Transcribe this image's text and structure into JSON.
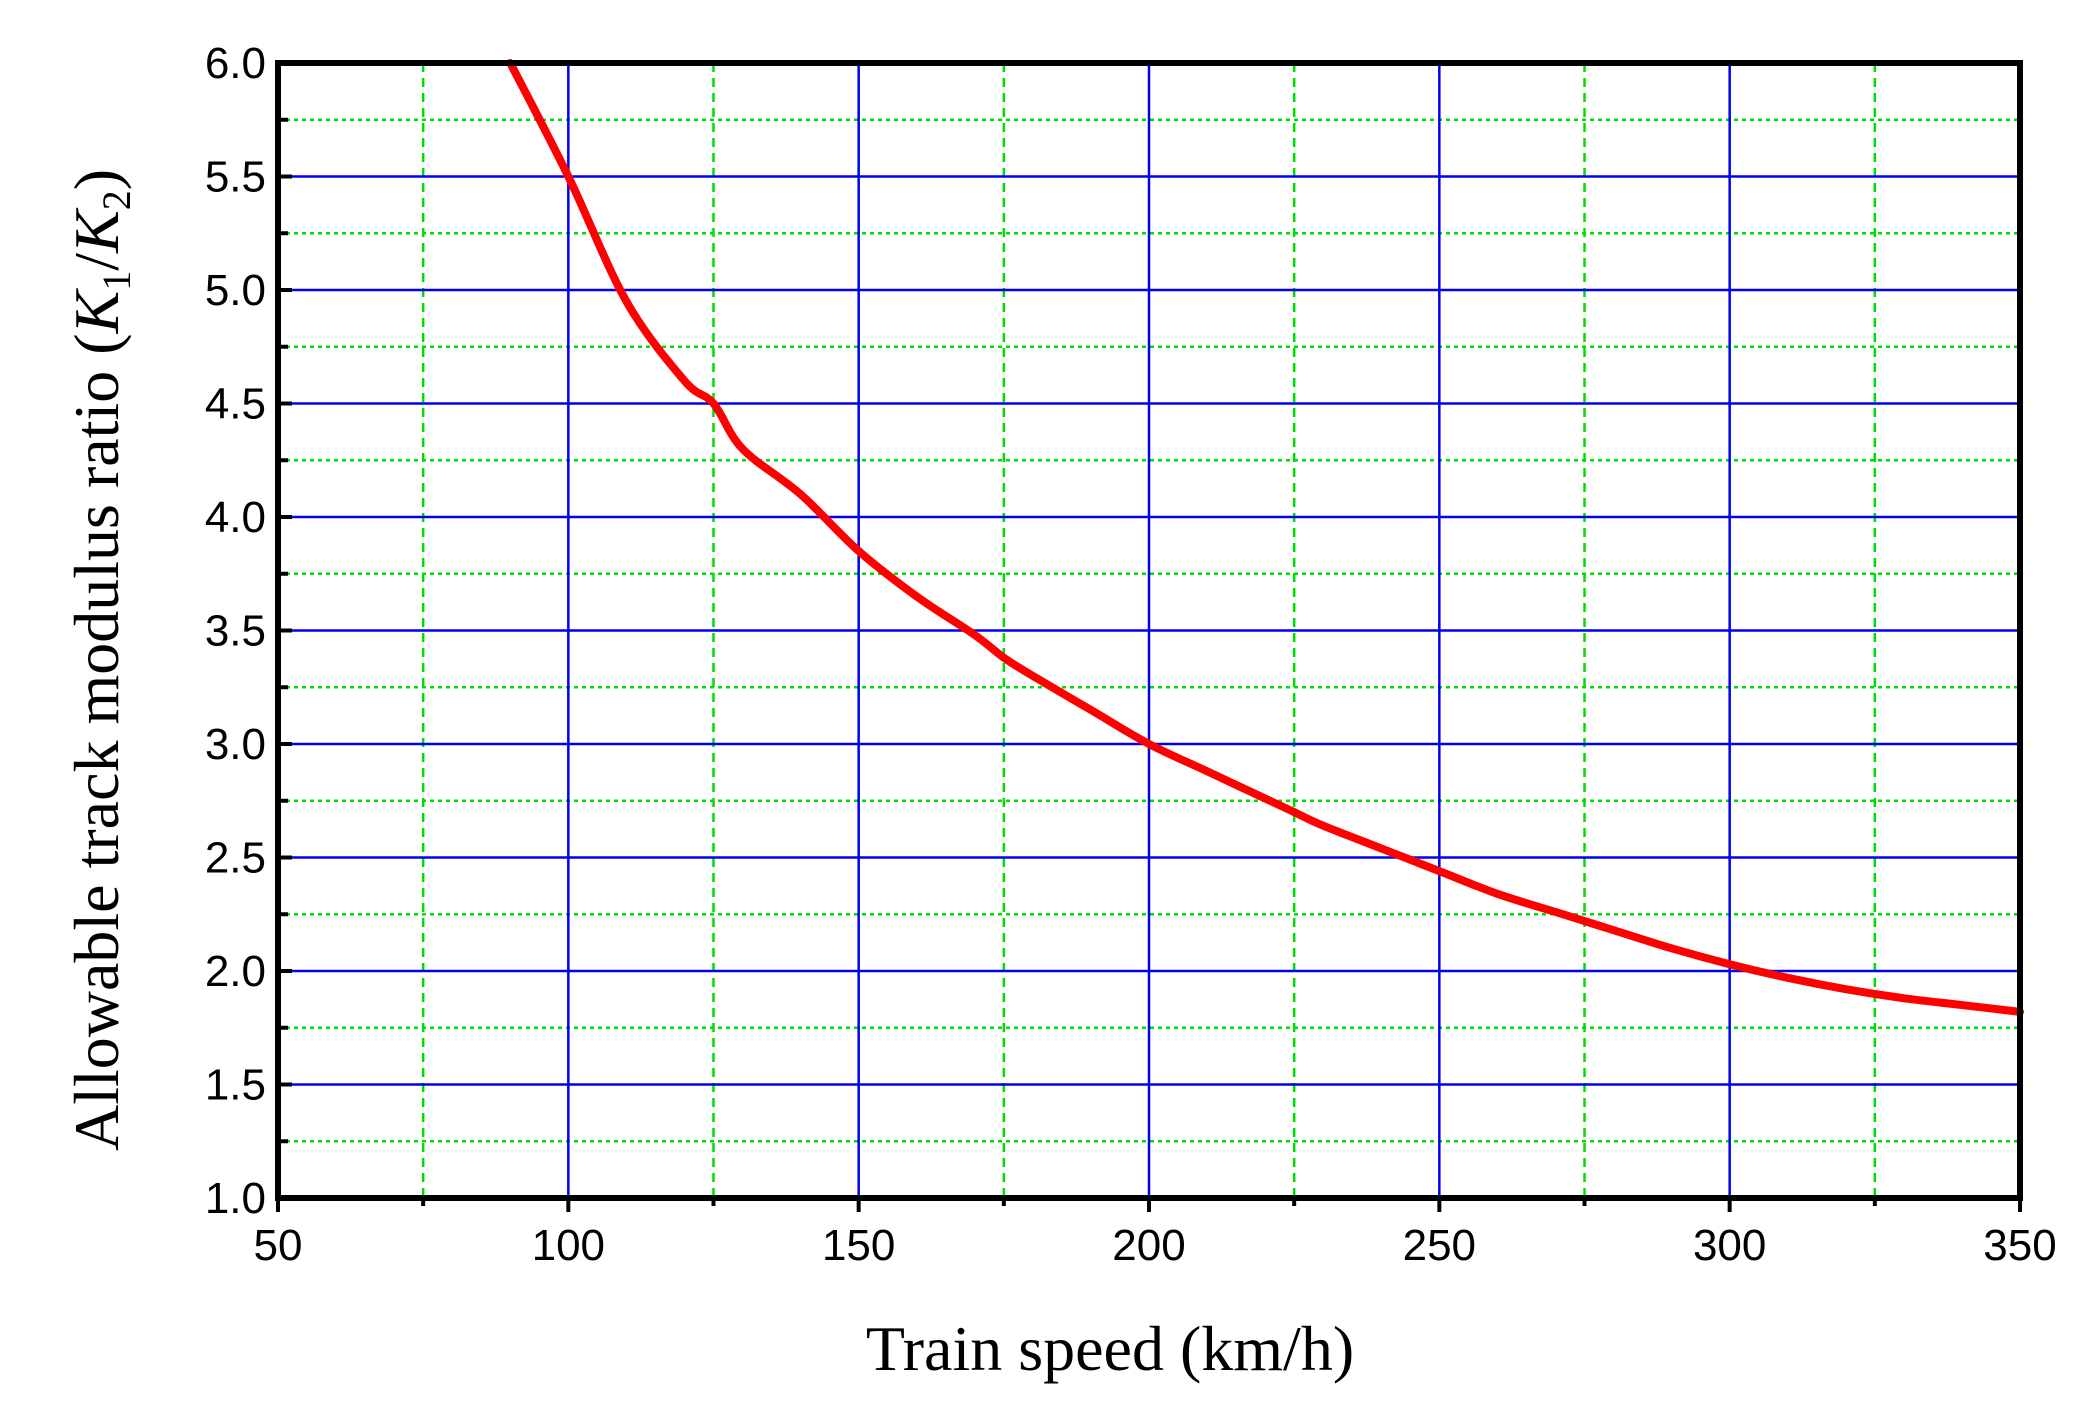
{
  "chart_data": {
    "type": "line",
    "xlabel": "Train speed (km/h)",
    "ylabel": "Allowable track modulus ratio",
    "ylabel_math": {
      "open": " (",
      "k1": "K",
      "k1_sub": "1",
      "slash": "/",
      "k2": "K",
      "k2_sub": "2",
      "close": ")"
    },
    "xlim": [
      50,
      350
    ],
    "ylim": [
      1.0,
      6.0
    ],
    "x_ticks": [
      "50",
      "100",
      "150",
      "200",
      "250",
      "300",
      "350"
    ],
    "y_ticks": [
      "1.0",
      "1.5",
      "2.0",
      "2.5",
      "3.0",
      "3.5",
      "4.0",
      "4.5",
      "5.0",
      "5.5",
      "6.0"
    ],
    "grid": true,
    "colors": {
      "series": "#ff0000",
      "major_grid": "#0000ee",
      "minor_grid": "#00dd00",
      "frame": "#000000"
    },
    "series": [
      {
        "x": [
          90,
          100,
          110,
          120,
          125,
          130,
          140,
          150,
          160,
          170,
          175,
          180,
          190,
          200,
          210,
          220,
          225,
          230,
          240,
          250,
          260,
          270,
          275,
          280,
          290,
          300,
          310,
          320,
          330,
          340,
          350
        ],
        "y": [
          6.0,
          5.5,
          4.95,
          4.6,
          4.5,
          4.3,
          4.1,
          3.85,
          3.65,
          3.48,
          3.38,
          3.3,
          3.15,
          3.0,
          2.88,
          2.76,
          2.7,
          2.64,
          2.54,
          2.44,
          2.34,
          2.26,
          2.22,
          2.18,
          2.1,
          2.03,
          1.97,
          1.92,
          1.88,
          1.85,
          1.82
        ]
      }
    ]
  }
}
